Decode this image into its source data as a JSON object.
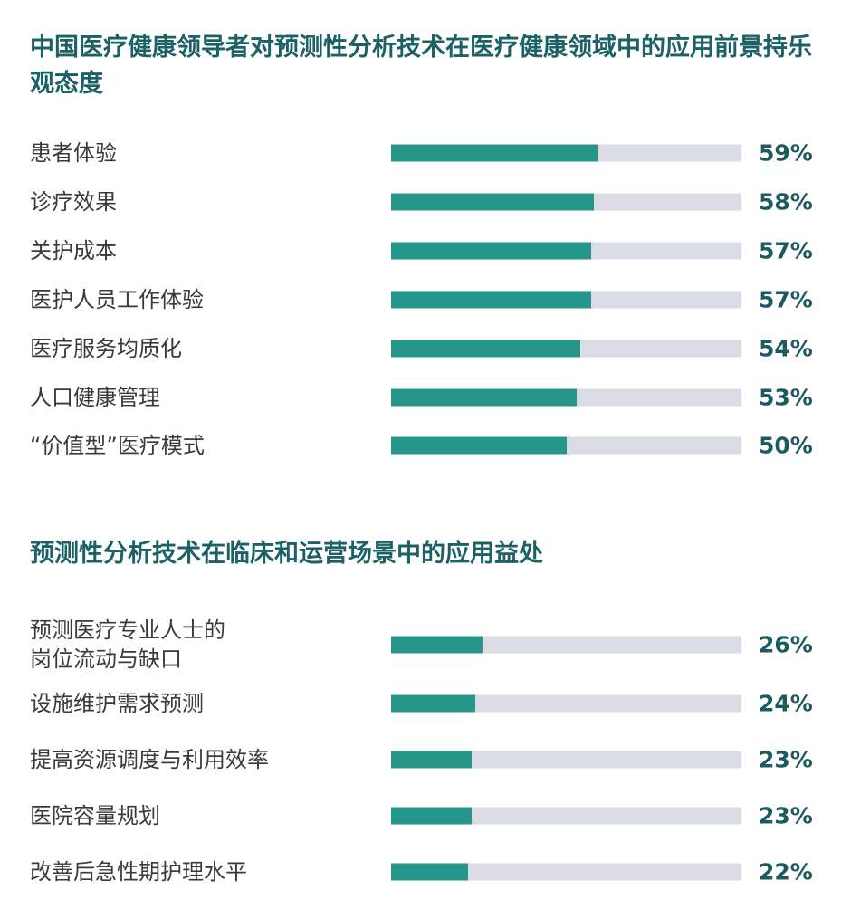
{
  "chart_data": [
    {
      "type": "bar",
      "orientation": "horizontal",
      "title": "中国医疗健康领导者对预测性分析技术在医疗健康领域中的应用前景持乐观态度",
      "categories": [
        "患者体验",
        "诊疗效果",
        "关护成本",
        "医护人员工作体验",
        "医疗服务均质化",
        "人口健康管理",
        "“价值型”医疗模式"
      ],
      "values": [
        59,
        58,
        57,
        57,
        54,
        53,
        50
      ],
      "labels": [
        "59%",
        "58%",
        "57%",
        "57%",
        "54%",
        "53%",
        "50%"
      ],
      "xlim": [
        0,
        100
      ],
      "colors": {
        "fill": "#26968a",
        "track": "#dadbe4"
      }
    },
    {
      "type": "bar",
      "orientation": "horizontal",
      "title": "预测性分析技术在临床和运营场景中的应用益处",
      "categories": [
        "预测医疗专业人士的\n岗位流动与缺口",
        "设施维护需求预测",
        "提高资源调度与利用效率",
        "医院容量规划",
        "改善后急性期护理水平"
      ],
      "values": [
        26,
        24,
        23,
        23,
        22
      ],
      "labels": [
        "26%",
        "24%",
        "23%",
        "23%",
        "22%"
      ],
      "xlim": [
        0,
        100
      ],
      "colors": {
        "fill": "#26968a",
        "track": "#dadbe4"
      }
    }
  ]
}
